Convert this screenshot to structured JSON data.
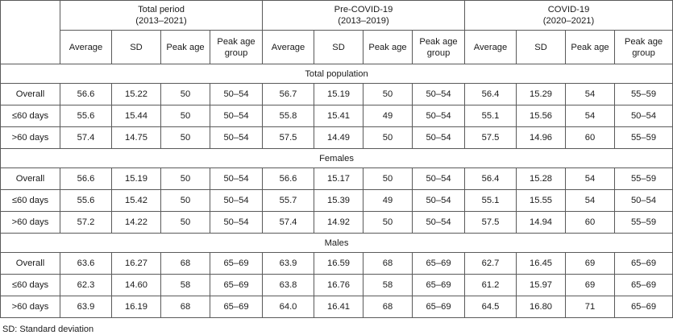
{
  "groups": [
    {
      "title": "Total period",
      "period": "(2013–2021)"
    },
    {
      "title": "Pre-COVID-19",
      "period": "(2013–2019)"
    },
    {
      "title": "COVID-19",
      "period": "(2020–2021)"
    }
  ],
  "columns": [
    "Average",
    "SD",
    "Peak age",
    "Peak age group"
  ],
  "sections": [
    {
      "label": "Total population",
      "rows": [
        {
          "label": "Overall",
          "values": [
            "56.6",
            "15.22",
            "50",
            "50–54",
            "56.7",
            "15.19",
            "50",
            "50–54",
            "56.4",
            "15.29",
            "54",
            "55–59"
          ]
        },
        {
          "label": "≤60 days",
          "values": [
            "55.6",
            "15.44",
            "50",
            "50–54",
            "55.8",
            "15.41",
            "49",
            "50–54",
            "55.1",
            "15.56",
            "54",
            "50–54"
          ]
        },
        {
          "label": ">60 days",
          "values": [
            "57.4",
            "14.75",
            "50",
            "50–54",
            "57.5",
            "14.49",
            "50",
            "50–54",
            "57.5",
            "14.96",
            "60",
            "55–59"
          ]
        }
      ]
    },
    {
      "label": "Females",
      "rows": [
        {
          "label": "Overall",
          "values": [
            "56.6",
            "15.19",
            "50",
            "50–54",
            "56.6",
            "15.17",
            "50",
            "50–54",
            "56.4",
            "15.28",
            "54",
            "55–59"
          ]
        },
        {
          "label": "≤60 days",
          "values": [
            "55.6",
            "15.42",
            "50",
            "50–54",
            "55.7",
            "15.39",
            "49",
            "50–54",
            "55.1",
            "15.55",
            "54",
            "50–54"
          ]
        },
        {
          "label": ">60 days",
          "values": [
            "57.2",
            "14.22",
            "50",
            "50–54",
            "57.4",
            "14.92",
            "50",
            "50–54",
            "57.5",
            "14.94",
            "60",
            "55–59"
          ]
        }
      ]
    },
    {
      "label": "Males",
      "rows": [
        {
          "label": "Overall",
          "values": [
            "63.6",
            "16.27",
            "68",
            "65–69",
            "63.9",
            "16.59",
            "68",
            "65–69",
            "62.7",
            "16.45",
            "69",
            "65–69"
          ]
        },
        {
          "label": "≤60 days",
          "values": [
            "62.3",
            "14.60",
            "58",
            "65–69",
            "63.8",
            "16.76",
            "58",
            "65–69",
            "61.2",
            "15.97",
            "69",
            "65–69"
          ]
        },
        {
          "label": ">60 days",
          "values": [
            "63.9",
            "16.19",
            "68",
            "65–69",
            "64.0",
            "16.41",
            "68",
            "65–69",
            "64.5",
            "16.80",
            "71",
            "65–69"
          ]
        }
      ]
    }
  ],
  "footnote": "SD: Standard deviation"
}
